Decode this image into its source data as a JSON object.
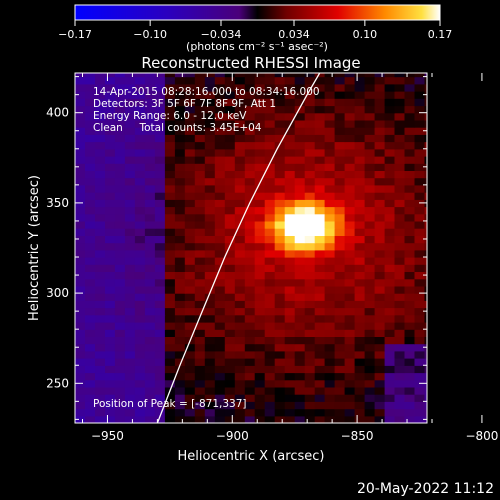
{
  "chart_data": {
    "type": "heatmap",
    "title": "Reconstructed RHESSI Image",
    "xlabel": "Heliocentric X (arcsec)",
    "ylabel": "Heliocentric Y (arcsec)",
    "xlim": [
      -963,
      -822
    ],
    "ylim": [
      228,
      422
    ],
    "x_ticks": [
      {
        "value": -950,
        "label": "−950"
      },
      {
        "value": -900,
        "label": "−900"
      },
      {
        "value": -850,
        "label": "−850"
      },
      {
        "value": -800,
        "label": "−800"
      }
    ],
    "y_ticks": [
      {
        "value": 250,
        "label": "250"
      },
      {
        "value": 300,
        "label": "300"
      },
      {
        "value": 350,
        "label": "350"
      },
      {
        "value": 400,
        "label": "400"
      }
    ],
    "colorbar": {
      "min": -0.17,
      "max": 0.17,
      "ticks": [
        {
          "value": -0.17,
          "label": "−0.17"
        },
        {
          "value": -0.1,
          "label": "−0.10"
        },
        {
          "value": -0.034,
          "label": "−0.034"
        },
        {
          "value": 0.034,
          "label": "0.034"
        },
        {
          "value": 0.1,
          "label": "0.10"
        },
        {
          "value": 0.17,
          "label": "0.17"
        }
      ],
      "units": "(photons cm⁻² s⁻¹ asec⁻²)"
    },
    "peak": {
      "x": -871,
      "y": 337
    },
    "annotations": [
      "14-Apr-2015 08:28:16.000 to 08:34:16.000",
      "Detectors: 3F 5F 6F 7F 8F 9F, Att 1",
      "Energy Range: 6.0 - 12.0 keV",
      "Clean     Total counts: 3.45E+04"
    ],
    "peak_label": "Position of Peak = [-871,337]",
    "limb_curve": [
      [
        -930,
        228
      ],
      [
        -921,
        260
      ],
      [
        -912,
        290
      ],
      [
        -903,
        320
      ],
      [
        -893,
        350
      ],
      [
        -882,
        380
      ],
      [
        -870,
        410
      ],
      [
        -865,
        422
      ]
    ]
  },
  "footer": {
    "date": "20-May-2022 11:12"
  }
}
